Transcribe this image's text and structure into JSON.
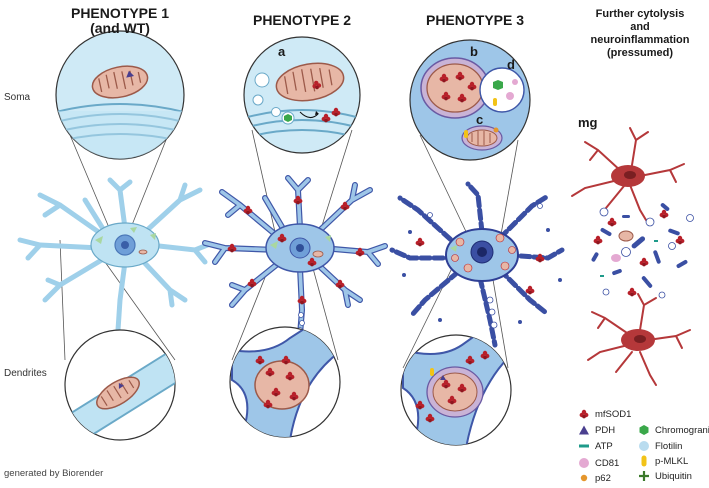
{
  "titles": {
    "p1_line1": "PHENOTYPE 1",
    "p1_line2": "(and WT)",
    "p2": "PHENOTYPE 2",
    "p3": "PHENOTYPE 3",
    "p4_line1": "Further cytolysis",
    "p4_line2": "and",
    "p4_line3": "neuroinflammation",
    "p4_line4": "(pressumed)"
  },
  "row_labels": {
    "soma": "Soma",
    "dendrites": "Dendrites"
  },
  "panel_letters": {
    "a": "a",
    "b": "b",
    "c": "c",
    "d": "d",
    "mg": "mg"
  },
  "legend": [
    {
      "label": "mfSOD1",
      "icon": "mfsod1-cluster-icon",
      "color": "#b8202a"
    },
    {
      "label": "Chromogranin",
      "icon": "hexagon-icon",
      "color": "#3aa84a"
    },
    {
      "label": "PDH",
      "icon": "triangle-icon",
      "color": "#4a3f8f"
    },
    {
      "label": "Flotilin",
      "icon": "circle-icon",
      "color": "#b9dcef"
    },
    {
      "label": "ATP",
      "icon": "dash-icon",
      "color": "#1e9a8a"
    },
    {
      "label": "p-MLKL",
      "icon": "capsule-icon",
      "color": "#f2c318"
    },
    {
      "label": "CD81",
      "icon": "circle-icon",
      "color": "#e4a9d2"
    },
    {
      "label": "Ubiquitin",
      "icon": "cross-icon",
      "color": "#3c7a2c"
    },
    {
      "label": "p62",
      "icon": "dot-icon",
      "color": "#e5962c"
    }
  ],
  "credit": "generated by Biorender",
  "colors": {
    "neuron_light": "#bfe3f3",
    "neuron_mid": "#9ec6e8",
    "neuron_dark": "#3f57a8",
    "mito_fill": "#e7b7a6",
    "mito_stroke": "#9c5a4a",
    "microglia": "#b5383a"
  }
}
